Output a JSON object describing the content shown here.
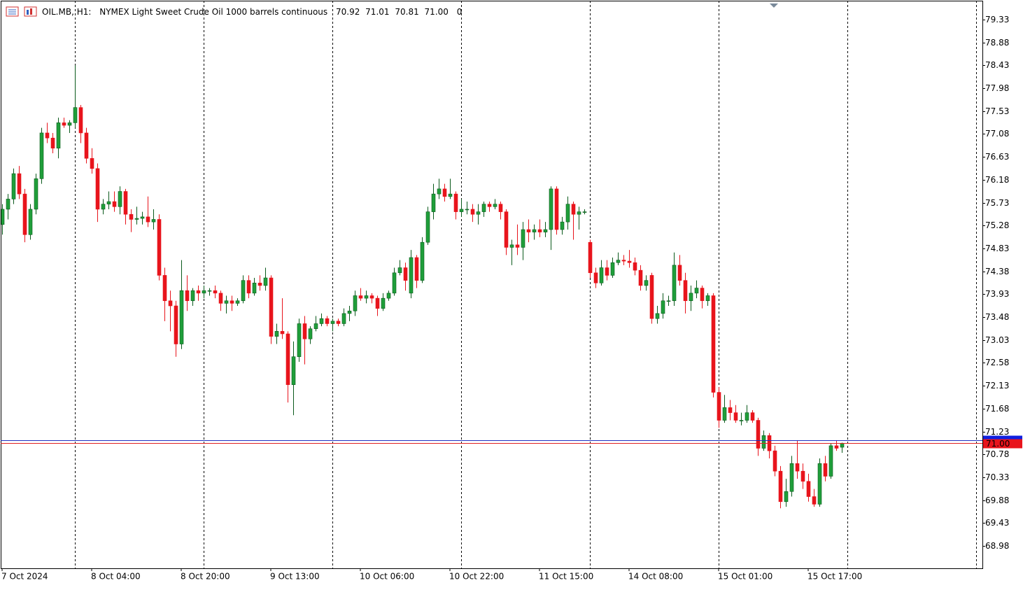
{
  "chart_data": {
    "type": "candlestick",
    "symbol": "OIL.MB, H1:",
    "title": "NYMEX Light Sweet Crude Oil 1000 barrels continuous",
    "quote_labels": [
      "70.92",
      "71.01",
      "70.81",
      "71.00"
    ],
    "volume": 0,
    "up_color": "#1f9e3a",
    "down_color": "#e8141c",
    "ylim": [
      68.54,
      79.7
    ],
    "yticks": [
      79.33,
      78.88,
      78.43,
      77.98,
      77.53,
      77.08,
      76.63,
      76.18,
      75.73,
      75.28,
      74.83,
      74.38,
      73.93,
      73.48,
      73.03,
      72.58,
      72.13,
      71.68,
      71.23,
      70.78,
      70.33,
      69.88,
      69.43,
      68.98
    ],
    "bid": {
      "value": 71.0,
      "label": "71.00"
    },
    "ask": 71.06,
    "categories": [
      "7 Oct 2024",
      null,
      null,
      null,
      null,
      null,
      null,
      null,
      null,
      null,
      null,
      null,
      null,
      null,
      null,
      null,
      "8 Oct 04:00",
      null,
      null,
      null,
      null,
      null,
      null,
      null,
      null,
      null,
      null,
      null,
      null,
      null,
      null,
      null,
      "8 Oct 20:00",
      null,
      null,
      null,
      null,
      null,
      null,
      null,
      null,
      null,
      null,
      null,
      null,
      null,
      null,
      null,
      "9 Oct 13:00",
      null,
      null,
      null,
      null,
      null,
      null,
      null,
      null,
      null,
      null,
      null,
      null,
      null,
      null,
      null,
      "10 Oct 06:00",
      null,
      null,
      null,
      null,
      null,
      null,
      null,
      null,
      null,
      null,
      null,
      null,
      null,
      null,
      null,
      "10 Oct 22:00",
      null,
      null,
      null,
      null,
      null,
      null,
      null,
      null,
      null,
      null,
      null,
      null,
      null,
      null,
      null,
      "11 Oct 15:00",
      null,
      null,
      null,
      null,
      null,
      null,
      null,
      null,
      null,
      null,
      null,
      null,
      null,
      null,
      null,
      "14 Oct 08:00",
      null,
      null,
      null,
      null,
      null,
      null,
      null,
      null,
      null,
      null,
      null,
      null,
      null,
      null,
      null,
      "15 Oct 01:00",
      null,
      null,
      null,
      null,
      null,
      null,
      null,
      null,
      null,
      null,
      null,
      null,
      null,
      null,
      null,
      "15 Oct 17:00",
      null,
      null,
      null,
      null,
      null,
      null
    ],
    "ohlc": [
      [
        75.3,
        75.7,
        75.1,
        75.6
      ],
      [
        75.6,
        75.9,
        75.4,
        75.8
      ],
      [
        75.8,
        76.4,
        75.7,
        76.3
      ],
      [
        76.3,
        76.45,
        75.8,
        75.9
      ],
      [
        75.9,
        76.0,
        74.95,
        75.1
      ],
      [
        75.1,
        75.7,
        75.0,
        75.6
      ],
      [
        75.6,
        76.3,
        75.5,
        76.2
      ],
      [
        76.2,
        77.2,
        76.1,
        77.1
      ],
      [
        77.1,
        77.3,
        76.9,
        77.0
      ],
      [
        77.0,
        77.1,
        76.7,
        76.8
      ],
      [
        76.8,
        77.4,
        76.6,
        77.3
      ],
      [
        77.3,
        77.4,
        77.2,
        77.25
      ],
      [
        77.25,
        77.35,
        77.1,
        77.3
      ],
      [
        77.3,
        78.43,
        77.2,
        77.6
      ],
      [
        77.6,
        77.65,
        76.9,
        77.1
      ],
      [
        77.1,
        77.2,
        76.5,
        76.6
      ],
      [
        76.6,
        76.8,
        76.3,
        76.4
      ],
      [
        76.4,
        76.5,
        75.35,
        75.6
      ],
      [
        75.6,
        75.8,
        75.5,
        75.7
      ],
      [
        75.7,
        75.95,
        75.6,
        75.75
      ],
      [
        75.75,
        75.95,
        75.55,
        75.65
      ],
      [
        75.65,
        76.05,
        75.5,
        75.95
      ],
      [
        75.95,
        76.0,
        75.3,
        75.5
      ],
      [
        75.5,
        75.6,
        75.15,
        75.4
      ],
      [
        75.4,
        75.65,
        75.3,
        75.42
      ],
      [
        75.42,
        75.55,
        75.3,
        75.45
      ],
      [
        75.45,
        75.85,
        75.25,
        75.35
      ],
      [
        75.35,
        75.6,
        75.2,
        75.4
      ],
      [
        75.4,
        75.5,
        74.2,
        74.3
      ],
      [
        74.3,
        74.45,
        73.4,
        73.8
      ],
      [
        73.8,
        74.0,
        73.2,
        73.7
      ],
      [
        73.7,
        73.8,
        72.7,
        72.95
      ],
      [
        72.95,
        74.6,
        72.85,
        74.0
      ],
      [
        74.0,
        74.3,
        73.6,
        73.8
      ],
      [
        73.8,
        74.05,
        73.7,
        74.0
      ],
      [
        74.0,
        74.1,
        73.8,
        73.95
      ],
      [
        73.95,
        74.1,
        73.85,
        74.0
      ],
      [
        74.0,
        74.05,
        73.9,
        74.0
      ],
      [
        74.0,
        74.1,
        73.85,
        73.95
      ],
      [
        73.95,
        74.0,
        73.6,
        73.75
      ],
      [
        73.75,
        73.9,
        73.55,
        73.8
      ],
      [
        73.8,
        73.9,
        73.6,
        73.75
      ],
      [
        73.75,
        73.85,
        73.7,
        73.8
      ],
      [
        73.8,
        74.3,
        73.75,
        74.2
      ],
      [
        74.2,
        74.3,
        73.85,
        73.95
      ],
      [
        73.95,
        74.25,
        73.9,
        74.15
      ],
      [
        74.15,
        74.3,
        74.0,
        74.1
      ],
      [
        74.1,
        74.45,
        74.0,
        74.25
      ],
      [
        74.25,
        74.3,
        72.95,
        73.1
      ],
      [
        73.1,
        73.35,
        72.95,
        73.2
      ],
      [
        73.2,
        73.85,
        73.05,
        73.15
      ],
      [
        73.15,
        73.2,
        71.8,
        72.15
      ],
      [
        72.15,
        73.0,
        71.55,
        72.7
      ],
      [
        72.7,
        73.45,
        72.6,
        73.35
      ],
      [
        73.35,
        73.5,
        72.55,
        73.05
      ],
      [
        73.05,
        73.3,
        72.95,
        73.25
      ],
      [
        73.25,
        73.5,
        73.2,
        73.35
      ],
      [
        73.35,
        73.55,
        73.3,
        73.45
      ],
      [
        73.45,
        73.5,
        73.3,
        73.35
      ],
      [
        73.35,
        73.45,
        73.2,
        73.4
      ],
      [
        73.4,
        73.45,
        73.3,
        73.35
      ],
      [
        73.35,
        73.65,
        73.3,
        73.55
      ],
      [
        73.55,
        73.7,
        73.4,
        73.6
      ],
      [
        73.6,
        74.0,
        73.5,
        73.9
      ],
      [
        73.9,
        74.05,
        73.8,
        73.85
      ],
      [
        73.85,
        74.0,
        73.75,
        73.9
      ],
      [
        73.9,
        73.95,
        73.75,
        73.85
      ],
      [
        73.85,
        73.9,
        73.5,
        73.65
      ],
      [
        73.65,
        73.95,
        73.6,
        73.85
      ],
      [
        73.85,
        74.0,
        73.8,
        73.95
      ],
      [
        73.95,
        74.45,
        73.9,
        74.35
      ],
      [
        74.35,
        74.6,
        74.3,
        74.45
      ],
      [
        74.45,
        74.55,
        74.0,
        74.2
      ],
      [
        73.95,
        74.8,
        73.85,
        74.65
      ],
      [
        74.65,
        74.7,
        74.05,
        74.2
      ],
      [
        74.2,
        75.05,
        74.15,
        74.95
      ],
      [
        74.95,
        75.65,
        74.9,
        75.55
      ],
      [
        75.55,
        76.1,
        75.4,
        75.9
      ],
      [
        75.9,
        76.2,
        75.8,
        76.0
      ],
      [
        76.0,
        76.1,
        75.75,
        75.85
      ],
      [
        75.85,
        76.2,
        75.8,
        75.9
      ],
      [
        75.9,
        75.95,
        75.4,
        75.55
      ],
      [
        75.55,
        75.8,
        75.45,
        75.6
      ],
      [
        75.6,
        75.75,
        75.5,
        75.6
      ],
      [
        75.6,
        75.7,
        75.35,
        75.5
      ],
      [
        75.5,
        75.7,
        75.3,
        75.55
      ],
      [
        75.55,
        75.75,
        75.45,
        75.7
      ],
      [
        75.7,
        75.75,
        75.55,
        75.65
      ],
      [
        75.65,
        75.8,
        75.6,
        75.7
      ],
      [
        75.7,
        75.75,
        75.4,
        75.55
      ],
      [
        75.55,
        75.6,
        74.7,
        74.85
      ],
      [
        74.85,
        75.0,
        74.5,
        74.9
      ],
      [
        74.9,
        75.3,
        74.7,
        74.85
      ],
      [
        74.85,
        75.35,
        74.6,
        75.2
      ],
      [
        75.2,
        75.4,
        74.95,
        75.15
      ],
      [
        75.15,
        75.3,
        75.0,
        75.2
      ],
      [
        75.2,
        75.4,
        75.05,
        75.15
      ],
      [
        75.15,
        75.35,
        75.05,
        75.2
      ],
      [
        75.2,
        76.05,
        74.8,
        76.0
      ],
      [
        76.0,
        76.05,
        75.1,
        75.2
      ],
      [
        75.2,
        75.45,
        75.1,
        75.35
      ],
      [
        75.35,
        75.85,
        75.2,
        75.7
      ],
      [
        75.7,
        75.75,
        75.0,
        75.5
      ],
      [
        75.5,
        75.65,
        75.2,
        75.55
      ],
      [
        75.55,
        75.6,
        75.5,
        75.55
      ],
      [
        74.95,
        75.0,
        74.25,
        74.35
      ],
      [
        74.35,
        74.45,
        74.05,
        74.15
      ],
      [
        74.15,
        74.6,
        74.1,
        74.45
      ],
      [
        74.45,
        74.6,
        74.2,
        74.3
      ],
      [
        74.3,
        74.65,
        74.25,
        74.55
      ],
      [
        74.55,
        74.75,
        74.5,
        74.6
      ],
      [
        74.6,
        74.7,
        74.5,
        74.58
      ],
      [
        74.58,
        74.8,
        74.45,
        74.55
      ],
      [
        74.55,
        74.65,
        74.3,
        74.4
      ],
      [
        74.4,
        74.5,
        74.0,
        74.1
      ],
      [
        74.1,
        74.3,
        74.0,
        74.2
      ],
      [
        74.3,
        74.35,
        73.35,
        73.45
      ],
      [
        73.45,
        73.7,
        73.35,
        73.55
      ],
      [
        73.55,
        73.95,
        73.45,
        73.8
      ],
      [
        73.8,
        73.9,
        73.7,
        73.8
      ],
      [
        73.8,
        74.75,
        73.7,
        74.5
      ],
      [
        74.5,
        74.7,
        74.1,
        74.2
      ],
      [
        74.2,
        74.35,
        73.55,
        73.8
      ],
      [
        73.8,
        74.1,
        73.6,
        73.95
      ],
      [
        73.95,
        74.2,
        73.85,
        74.05
      ],
      [
        74.05,
        74.1,
        73.65,
        73.8
      ],
      [
        73.8,
        73.95,
        73.7,
        73.9
      ],
      [
        73.9,
        73.95,
        71.9,
        72.0
      ],
      [
        72.0,
        72.1,
        71.3,
        71.45
      ],
      [
        71.45,
        71.95,
        71.4,
        71.7
      ],
      [
        71.7,
        71.85,
        71.45,
        71.6
      ],
      [
        71.6,
        71.75,
        71.4,
        71.45
      ],
      [
        71.45,
        71.6,
        71.35,
        71.45
      ],
      [
        71.45,
        71.75,
        71.4,
        71.6
      ],
      [
        71.6,
        71.65,
        71.4,
        71.45
      ],
      [
        71.45,
        71.5,
        70.75,
        70.9
      ],
      [
        70.9,
        71.25,
        70.85,
        71.15
      ],
      [
        71.15,
        71.2,
        70.7,
        70.85
      ],
      [
        70.85,
        70.95,
        70.35,
        70.45
      ],
      [
        70.45,
        70.55,
        69.72,
        69.85
      ],
      [
        69.85,
        70.3,
        69.75,
        70.05
      ],
      [
        70.05,
        70.75,
        69.95,
        70.6
      ],
      [
        70.6,
        71.05,
        70.3,
        70.45
      ],
      [
        70.45,
        70.6,
        70.1,
        70.25
      ],
      [
        70.25,
        70.4,
        69.85,
        69.95
      ],
      [
        69.95,
        70.1,
        69.75,
        69.8
      ],
      [
        69.8,
        70.7,
        69.75,
        70.6
      ],
      [
        70.6,
        70.75,
        70.25,
        70.35
      ],
      [
        70.35,
        71.0,
        70.3,
        70.95
      ],
      [
        70.95,
        71.05,
        70.85,
        70.9
      ],
      [
        70.92,
        71.01,
        70.81,
        71.0
      ]
    ]
  }
}
